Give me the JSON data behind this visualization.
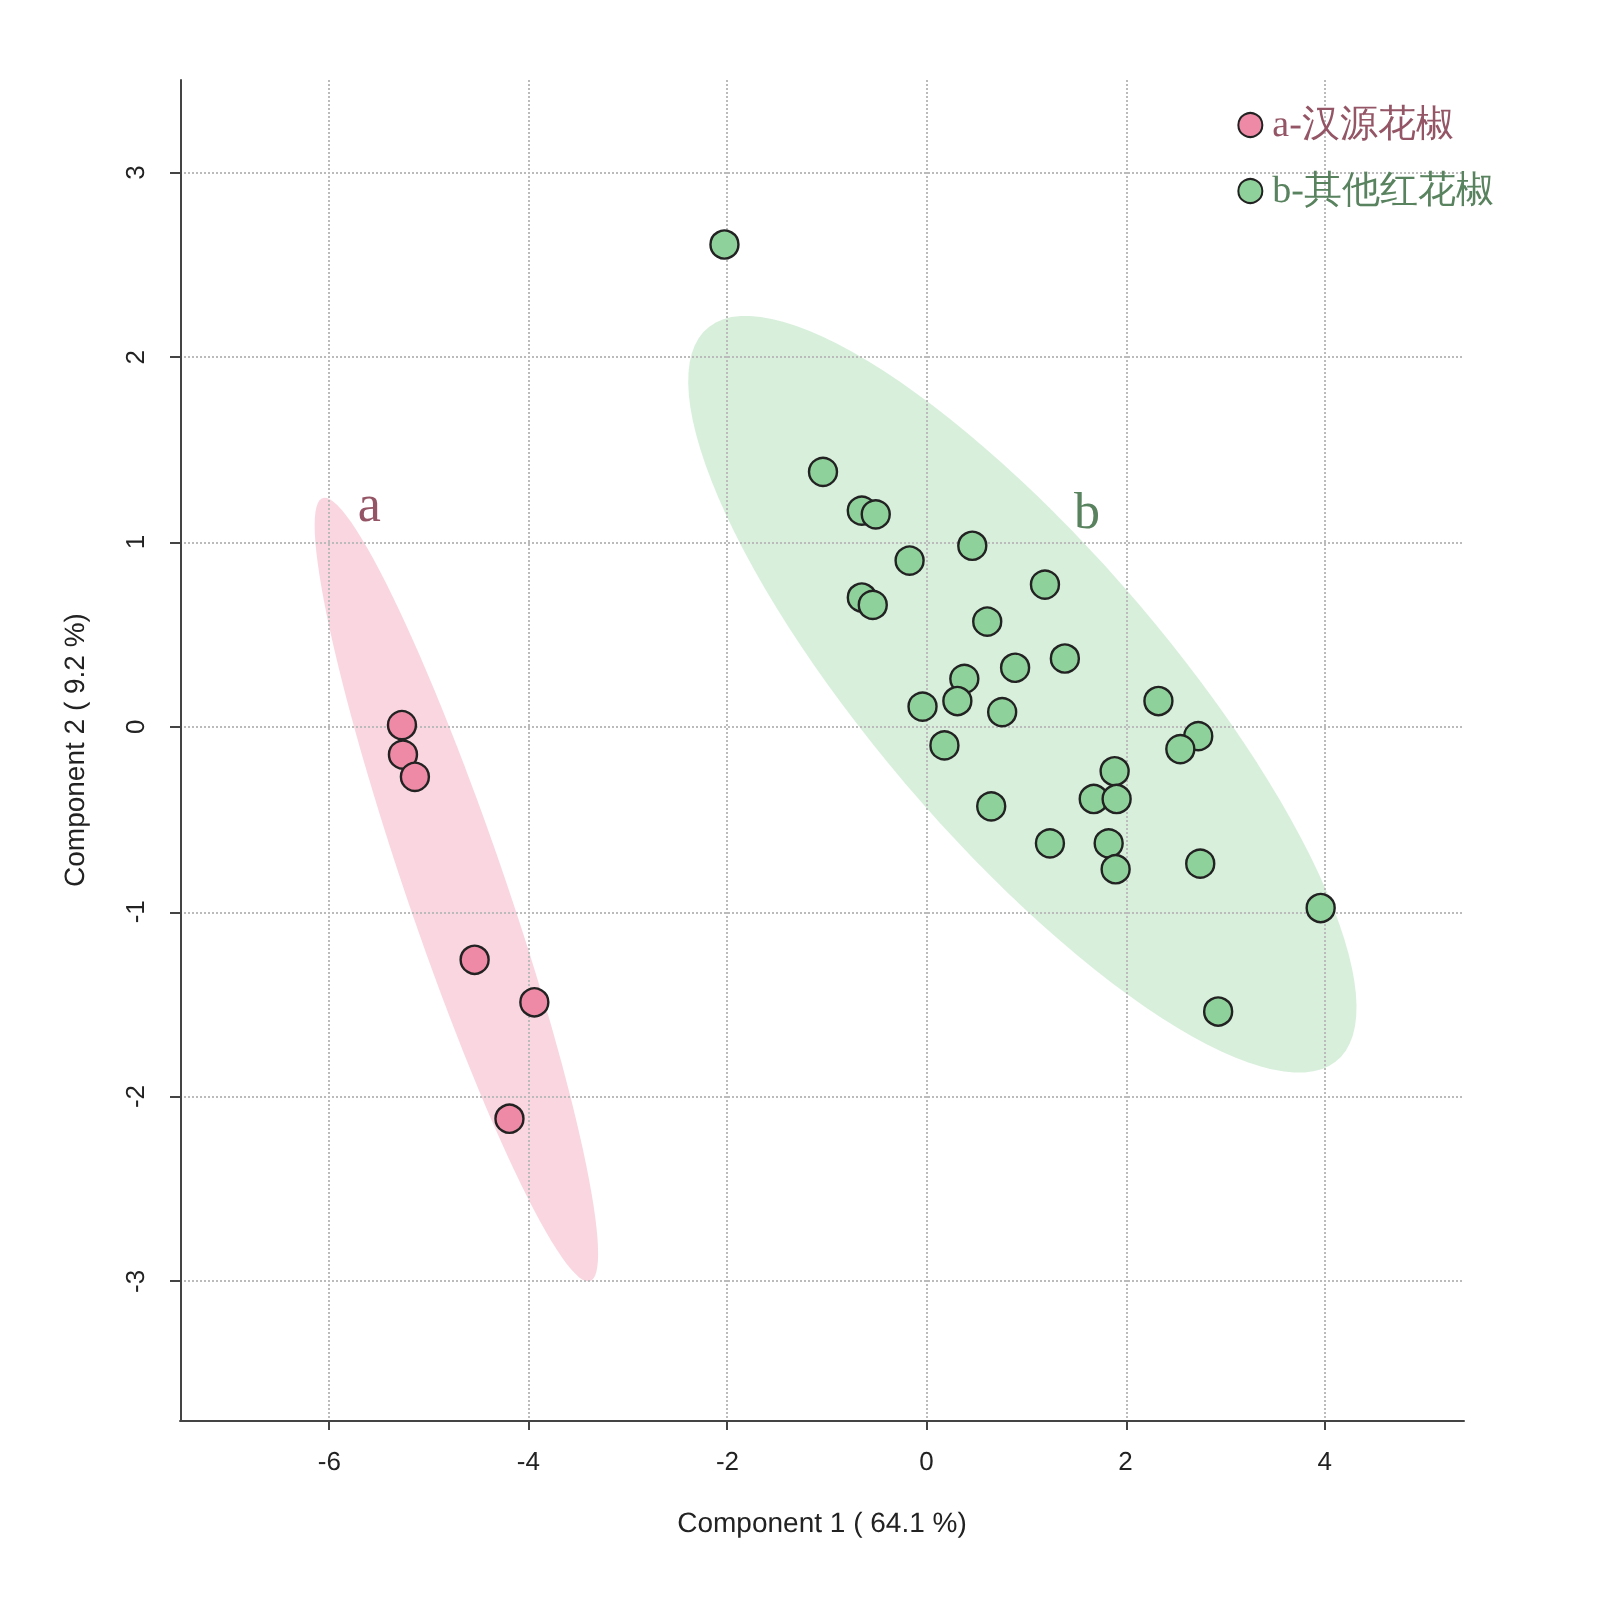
{
  "chart_data": {
    "type": "scatter",
    "xlabel": "Component 1 ( 64.1 %)",
    "ylabel": "Component 2 ( 9.2 %)",
    "xlim": [
      -7.5,
      5.4
    ],
    "ylim": [
      -3.75,
      3.5
    ],
    "xticks": [
      -6,
      -4,
      -2,
      0,
      2,
      4
    ],
    "yticks": [
      -3,
      -2,
      -1,
      0,
      1,
      2,
      3
    ],
    "grid": true,
    "legend": "top right",
    "marker": "circle",
    "series": [
      {
        "name": "a-汉源花椒",
        "color": "#ee8aa5",
        "x": [
          -5.27,
          -5.26,
          -5.14,
          -4.54,
          -3.94,
          -4.19
        ],
        "values": [
          0.01,
          -0.15,
          -0.27,
          -1.26,
          -1.49,
          -2.12
        ]
      },
      {
        "name": "b-其他红花椒",
        "color": "#8fd19a",
        "x": [
          -2.03,
          -1.04,
          -0.65,
          -0.51,
          0.46,
          -0.17,
          1.19,
          -0.65,
          -0.54,
          0.61,
          1.39,
          0.89,
          0.38,
          0.31,
          -0.04,
          0.76,
          2.33,
          2.73,
          2.55,
          0.18,
          1.89,
          1.68,
          1.91,
          0.65,
          1.24,
          1.83,
          1.9,
          2.75,
          3.96,
          2.93
        ],
        "values": [
          2.61,
          1.38,
          1.17,
          1.15,
          0.98,
          0.9,
          0.77,
          0.7,
          0.66,
          0.57,
          0.37,
          0.32,
          0.26,
          0.14,
          0.11,
          0.08,
          0.14,
          -0.05,
          -0.12,
          -0.1,
          -0.24,
          -0.39,
          -0.39,
          -0.43,
          -0.63,
          -0.63,
          -0.77,
          -0.74,
          -0.98,
          -1.54
        ]
      }
    ],
    "annotations": [
      "a",
      "b"
    ]
  }
}
